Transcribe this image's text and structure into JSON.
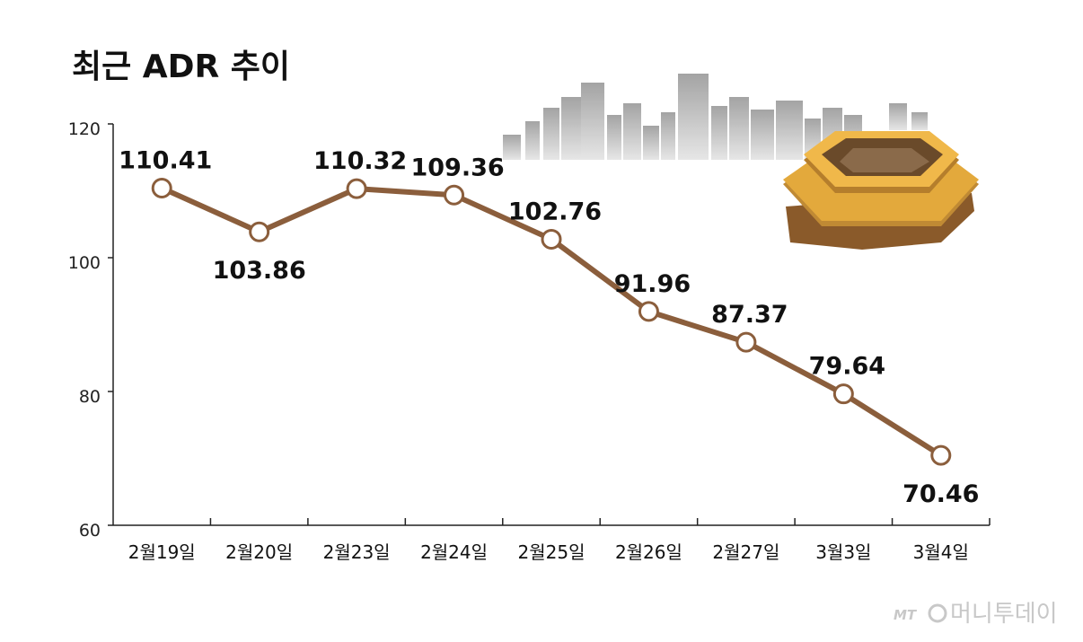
{
  "chart_data": {
    "type": "line",
    "title": "최근 ADR 추이",
    "categories": [
      "2월19일",
      "2월20일",
      "2월23일",
      "2월24일",
      "2월25일",
      "2월26일",
      "2월27일",
      "3월3일",
      "3월4일"
    ],
    "values": [
      110.41,
      103.86,
      110.32,
      109.36,
      102.76,
      91.96,
      87.37,
      79.64,
      70.46
    ],
    "data_labels": [
      "110.41",
      "103.86",
      "110.32",
      "109.36",
      "102.76",
      "91.96",
      "87.37",
      "79.64",
      "70.46"
    ],
    "yticks": [
      "60",
      "80",
      "100",
      "120"
    ],
    "ylim": [
      60,
      120
    ],
    "grid": false,
    "line_color": "#8b5e3c"
  },
  "watermark": {
    "brand_small": "MT",
    "brand_text": "머니투데이"
  }
}
